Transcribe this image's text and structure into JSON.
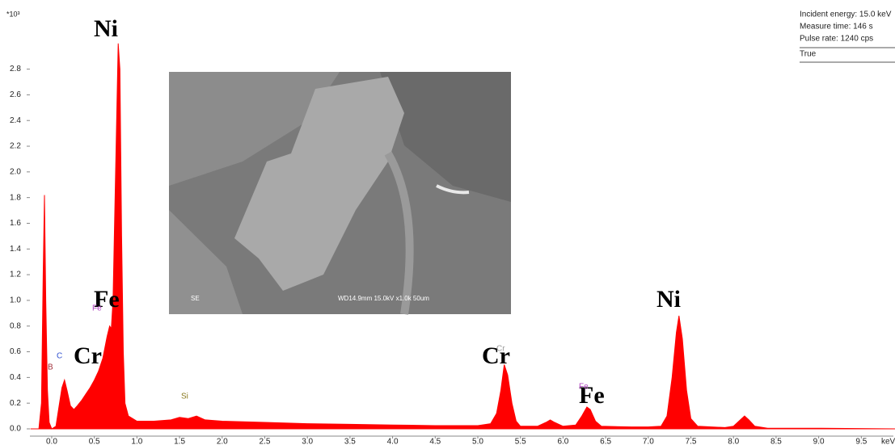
{
  "chart_data": {
    "type": "area",
    "y_unit": "*10³",
    "x_label": "keV",
    "color": "#ff0000",
    "xlim": [
      -0.25,
      9.9
    ],
    "ylim": [
      0,
      3.25
    ],
    "xticks": [
      {
        "value": 0,
        "label": "0.0"
      },
      0.5,
      {
        "value": 1,
        "label": "1.0"
      },
      1.5,
      {
        "value": 2,
        "label": "2.0"
      },
      2.5,
      {
        "value": 3,
        "label": "3.0"
      },
      3.5,
      {
        "value": 4,
        "label": "4.0"
      },
      4.5,
      {
        "value": 5,
        "label": "5.0"
      },
      5.5,
      {
        "value": 6,
        "label": "6.0"
      },
      6.5,
      {
        "value": 7,
        "label": "7.0"
      },
      7.5,
      {
        "value": 8,
        "label": "8.0"
      },
      8.5,
      {
        "value": 9,
        "label": "9.0"
      },
      9.5
    ],
    "yticks": [
      {
        "value": 0,
        "label": "0.0"
      },
      0.2,
      0.4,
      0.6,
      0.8,
      {
        "value": 1,
        "label": "1.0"
      },
      1.2,
      1.4,
      1.6,
      1.8,
      {
        "value": 2,
        "label": "2.0"
      },
      2.2,
      2.4,
      2.6,
      2.8
    ],
    "x": [
      -0.25,
      -0.15,
      -0.12,
      -0.1,
      -0.085,
      -0.07,
      -0.05,
      -0.03,
      0.0,
      0.05,
      0.08,
      0.12,
      0.15,
      0.18,
      0.22,
      0.26,
      0.3,
      0.35,
      0.4,
      0.45,
      0.5,
      0.55,
      0.6,
      0.65,
      0.68,
      0.7,
      0.72,
      0.75,
      0.78,
      0.8,
      0.82,
      0.84,
      0.86,
      0.9,
      1.0,
      1.2,
      1.4,
      1.5,
      1.6,
      1.7,
      1.8,
      2.0,
      2.5,
      3.0,
      3.5,
      4.0,
      4.5,
      5.0,
      5.15,
      5.22,
      5.27,
      5.31,
      5.35,
      5.4,
      5.45,
      5.5,
      5.7,
      5.8,
      5.85,
      5.9,
      6.0,
      6.15,
      6.22,
      6.28,
      6.32,
      6.38,
      6.45,
      6.8,
      7.0,
      7.15,
      7.22,
      7.28,
      7.33,
      7.36,
      7.4,
      7.45,
      7.5,
      7.58,
      7.9,
      8.0,
      8.08,
      8.13,
      8.18,
      8.25,
      8.4,
      9.0,
      9.9
    ],
    "values": [
      0.0,
      0.0,
      0.2,
      1.2,
      1.82,
      1.0,
      0.3,
      0.05,
      0.0,
      0.02,
      0.15,
      0.32,
      0.38,
      0.3,
      0.18,
      0.15,
      0.18,
      0.22,
      0.27,
      0.32,
      0.38,
      0.45,
      0.55,
      0.72,
      0.8,
      0.78,
      1.0,
      2.0,
      3.0,
      2.8,
      1.5,
      0.6,
      0.2,
      0.1,
      0.06,
      0.06,
      0.07,
      0.09,
      0.08,
      0.1,
      0.07,
      0.06,
      0.05,
      0.04,
      0.035,
      0.03,
      0.025,
      0.025,
      0.04,
      0.12,
      0.3,
      0.5,
      0.42,
      0.2,
      0.06,
      0.02,
      0.02,
      0.05,
      0.07,
      0.05,
      0.02,
      0.03,
      0.1,
      0.17,
      0.15,
      0.06,
      0.02,
      0.015,
      0.015,
      0.02,
      0.1,
      0.4,
      0.75,
      0.88,
      0.7,
      0.3,
      0.08,
      0.02,
      0.01,
      0.02,
      0.07,
      0.1,
      0.07,
      0.02,
      0.005,
      0.005,
      0.0
    ],
    "annotations": [
      "Ni",
      "Fe",
      "Cr",
      "Cr",
      "Fe",
      "Ni",
      "B",
      "C",
      "Si",
      "Fe",
      "Cr",
      "Fe"
    ],
    "info": [
      "Incident energy: 15.0 keV",
      "Measure time: 146 s",
      "Pulse rate: 1240 cps",
      "True"
    ],
    "inset_labels": [
      "SE",
      "WD14.9mm 15.0kV x1.0k 50um"
    ]
  }
}
